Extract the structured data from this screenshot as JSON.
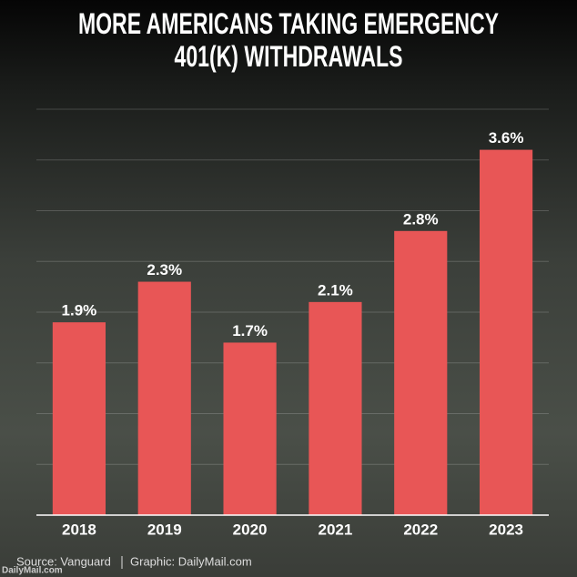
{
  "chart_data": {
    "type": "bar",
    "title": "MORE AMERICANS TAKING EMERGENCY 401(K) WITHDRAWALS",
    "categories": [
      "2018",
      "2019",
      "2020",
      "2021",
      "2022",
      "2023"
    ],
    "values": [
      1.9,
      2.3,
      1.7,
      2.1,
      2.8,
      3.6
    ],
    "value_labels": [
      "1.9%",
      "2.3%",
      "1.7%",
      "2.1%",
      "2.8%",
      "3.6%"
    ],
    "color": "#e85656",
    "ylim": [
      0,
      4
    ],
    "yticks": [
      0,
      0.5,
      1,
      1.5,
      2,
      2.5,
      3,
      3.5,
      4
    ],
    "grid": true,
    "source": "Source: Vanguard",
    "credit": "Graphic: DailyMail.com",
    "watermark": "DailyMail.com"
  }
}
